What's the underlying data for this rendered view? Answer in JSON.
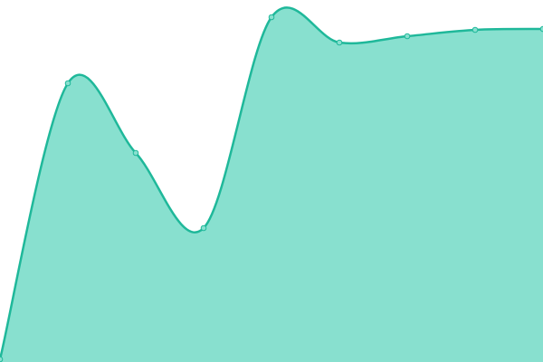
{
  "chart_data": {
    "type": "area",
    "values": [
      3,
      308,
      231,
      148,
      381,
      353,
      360,
      367,
      368
    ],
    "color": "#1fb89a",
    "fill": "#88e0cf",
    "ylim": [
      0,
      400
    ]
  }
}
